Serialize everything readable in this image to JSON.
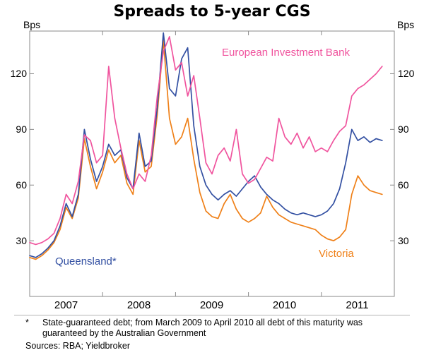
{
  "title": "Spreads to 5-year CGS",
  "axis": {
    "y_unit": "Bps"
  },
  "chart_data": {
    "type": "line",
    "title": "Spreads to 5-year CGS",
    "ylabel": "Bps",
    "ylim": [
      0,
      143
    ],
    "yticks": [
      30,
      60,
      90,
      120
    ],
    "xlim": [
      2007,
      2012
    ],
    "xtick_labels": [
      "2007",
      "2008",
      "2009",
      "2010",
      "2011"
    ],
    "x": [
      2007.0,
      2007.083,
      2007.167,
      2007.25,
      2007.333,
      2007.417,
      2007.5,
      2007.583,
      2007.667,
      2007.75,
      2007.833,
      2007.917,
      2008.0,
      2008.083,
      2008.167,
      2008.25,
      2008.333,
      2008.417,
      2008.5,
      2008.583,
      2008.667,
      2008.75,
      2008.833,
      2008.917,
      2009.0,
      2009.083,
      2009.167,
      2009.25,
      2009.333,
      2009.417,
      2009.5,
      2009.583,
      2009.667,
      2009.75,
      2009.833,
      2009.917,
      2010.0,
      2010.083,
      2010.167,
      2010.25,
      2010.333,
      2010.417,
      2010.5,
      2010.583,
      2010.667,
      2010.75,
      2010.833,
      2010.917,
      2011.0,
      2011.083,
      2011.167,
      2011.25,
      2011.333,
      2011.417,
      2011.5,
      2011.583,
      2011.667,
      2011.75,
      2011.833
    ],
    "series": [
      {
        "name": "Victoria",
        "color": "#ef8018",
        "values": [
          21,
          20,
          22,
          25,
          29,
          36,
          48,
          42,
          53,
          85,
          70,
          58,
          67,
          79,
          72,
          76,
          61,
          55,
          84,
          67,
          70,
          98,
          138,
          96,
          82,
          86,
          96,
          74,
          56,
          46,
          43,
          42,
          50,
          55,
          47,
          42,
          40,
          42,
          45,
          54,
          48,
          44,
          42,
          40,
          39,
          38,
          37,
          36,
          33,
          31,
          30,
          32,
          36,
          55,
          65,
          60,
          57,
          56,
          55
        ]
      },
      {
        "name": "Queensland*",
        "color": "#3350a2",
        "values": [
          22,
          21,
          23,
          26,
          30,
          38,
          50,
          43,
          55,
          90,
          74,
          62,
          70,
          82,
          76,
          79,
          64,
          58,
          88,
          70,
          73,
          102,
          142,
          112,
          108,
          128,
          134,
          92,
          70,
          60,
          55,
          52,
          55,
          57,
          54,
          58,
          62,
          65,
          59,
          55,
          52,
          50,
          47,
          45,
          44,
          45,
          44,
          43,
          44,
          46,
          50,
          58,
          72,
          90,
          84,
          86,
          83,
          85,
          84
        ]
      },
      {
        "name": "European Investment Bank",
        "color": "#f0549e",
        "values": [
          29,
          28,
          29,
          31,
          34,
          42,
          55,
          50,
          62,
          87,
          84,
          72,
          76,
          124,
          96,
          80,
          66,
          58,
          66,
          62,
          76,
          108,
          132,
          140,
          122,
          126,
          108,
          119,
          96,
          72,
          66,
          76,
          80,
          73,
          90,
          66,
          61,
          63,
          69,
          75,
          73,
          96,
          86,
          82,
          88,
          80,
          86,
          78,
          80,
          78,
          84,
          89,
          92,
          108,
          112,
          114,
          117,
          120,
          124
        ]
      }
    ],
    "legend_position": "inline-labels",
    "grid": false
  },
  "labels": {
    "eib": "European Investment Bank",
    "qld": "Queensland*",
    "vic": "Victoria"
  },
  "footnote": {
    "marker": "*",
    "line1": "State-guaranteed debt; from March 2009 to April 2010 all debt of this",
    "line2": "maturity was guaranteed by the Australian Government",
    "sources": "Sources: RBA; Yieldbroker"
  }
}
